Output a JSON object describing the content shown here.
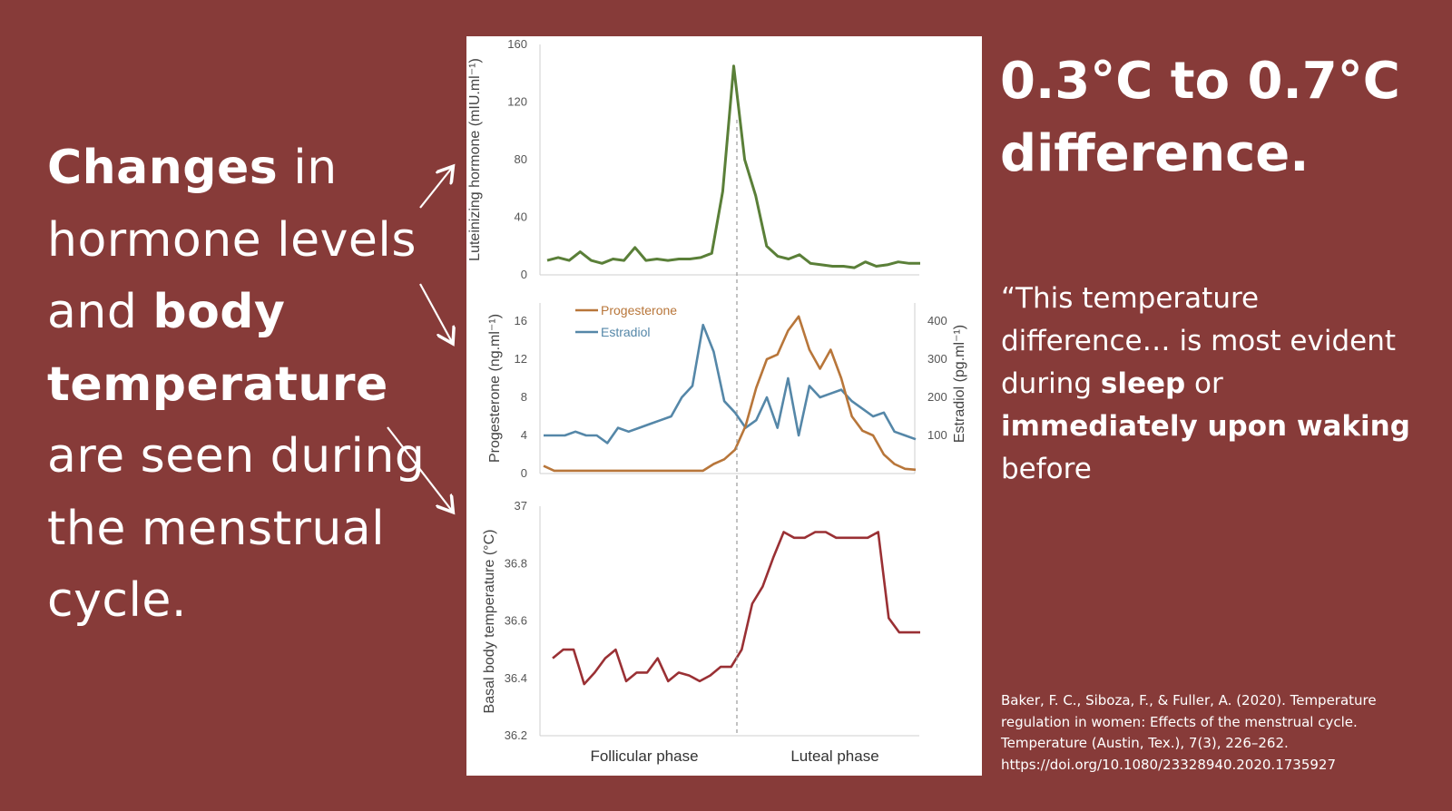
{
  "left": {
    "parts": [
      {
        "text": "Changes",
        "bold": true
      },
      {
        "text": " in hormone levels and ",
        "bold": false
      },
      {
        "text": "body temperature",
        "bold": true
      },
      {
        "text": " are seen during the menstrual cycle.",
        "bold": false
      }
    ]
  },
  "headline": "0.3°C to 0.7°C difference.",
  "quote": {
    "parts": [
      {
        "text": "“This temperature difference… is most evident during ",
        "bold": false
      },
      {
        "text": "sleep",
        "bold": true
      },
      {
        "text": " or ",
        "bold": false
      },
      {
        "text": "immediately upon waking",
        "bold": true
      },
      {
        "text": " before",
        "bold": false
      }
    ]
  },
  "citation": {
    "lines": [
      "Baker, F. C., Siboza, F., & Fuller, A. (2020). Temperature",
      "regulation in women: Effects of the menstrual cycle.",
      "Temperature (Austin, Tex.), 7(3), 226–262.",
      "https://doi.org/10.1080/23328940.2020.1735927"
    ]
  },
  "colors": {
    "background": "#873b39",
    "lh": "#5a7f38",
    "progesterone": "#b8763a",
    "estradiol": "#5587a8",
    "bbt": "#9a3034"
  },
  "chart_data": [
    {
      "type": "line",
      "x": [
        1,
        2,
        3,
        4,
        5,
        6,
        7,
        8,
        9,
        10,
        11,
        12,
        13,
        14,
        15,
        16,
        17,
        18,
        19,
        20,
        21,
        22,
        23,
        24,
        25,
        26,
        27,
        28,
        29,
        30,
        31,
        32,
        33,
        34,
        35
      ],
      "series": [
        {
          "values": [
            10,
            12,
            10,
            16,
            10,
            8,
            11,
            10,
            19,
            10,
            11,
            10,
            11,
            11,
            12,
            15,
            58,
            145,
            80,
            55,
            20,
            13,
            11,
            14,
            8,
            7,
            6,
            6,
            5,
            9,
            6,
            7,
            9,
            8,
            8
          ]
        }
      ],
      "ylabel": "Luteinizing hormone (mIU.ml⁻¹)",
      "ylim": [
        0,
        160
      ],
      "yticks": [
        "0",
        "40",
        "80",
        "120",
        "160"
      ],
      "grid": false
    },
    {
      "type": "line",
      "x": [
        1,
        2,
        3,
        4,
        5,
        6,
        7,
        8,
        9,
        10,
        11,
        12,
        13,
        14,
        15,
        16,
        17,
        18,
        19,
        20,
        21,
        22,
        23,
        24,
        25,
        26,
        27,
        28,
        29,
        30,
        31,
        32,
        33,
        34,
        35,
        36
      ],
      "series": [
        {
          "name": "Progesterone",
          "axis": "left",
          "values": [
            0.8,
            0.3,
            0.3,
            0.3,
            0.3,
            0.3,
            0.3,
            0.3,
            0.3,
            0.3,
            0.3,
            0.3,
            0.3,
            0.3,
            0.3,
            0.3,
            1.0,
            1.5,
            2.5,
            5.0,
            9.0,
            12.0,
            12.5,
            15.0,
            16.5,
            13.0,
            11.0,
            13.0,
            10.0,
            6.0,
            4.5,
            4.0,
            2.0,
            1.0,
            0.5,
            0.4
          ]
        },
        {
          "name": "Estradiol",
          "axis": "right",
          "values": [
            100,
            100,
            100,
            110,
            100,
            100,
            80,
            120,
            110,
            120,
            130,
            140,
            150,
            200,
            230,
            390,
            320,
            190,
            160,
            120,
            140,
            200,
            120,
            250,
            100,
            230,
            200,
            210,
            220,
            190,
            170,
            150,
            160,
            110,
            100,
            90
          ]
        }
      ],
      "ylabel": "Progesterone (ng.ml⁻¹)",
      "ylim": [
        0,
        16
      ],
      "yticks": [
        "0",
        "4",
        "8",
        "12",
        "16"
      ],
      "y2label": "Estradiol (pg.ml⁻¹)",
      "y2lim": [
        0,
        400
      ],
      "y2ticks": [
        "100",
        "200",
        "300",
        "400"
      ],
      "legend": "top-left",
      "grid": false
    },
    {
      "type": "line",
      "x": [
        1,
        2,
        3,
        4,
        5,
        6,
        7,
        8,
        9,
        10,
        11,
        12,
        13,
        14,
        15,
        16,
        17,
        18,
        19,
        20,
        21,
        22,
        23,
        24,
        25,
        26,
        27,
        28,
        29,
        30,
        31,
        32,
        33,
        34,
        35,
        36
      ],
      "series": [
        {
          "values": [
            36.47,
            36.5,
            36.5,
            36.38,
            36.42,
            36.47,
            36.5,
            36.39,
            36.42,
            36.42,
            36.47,
            36.39,
            36.42,
            36.41,
            36.39,
            36.41,
            36.44,
            36.44,
            36.5,
            36.66,
            36.72,
            36.82,
            36.91,
            36.89,
            36.89,
            36.91,
            36.91,
            36.89,
            36.89,
            36.89,
            36.89,
            36.91,
            36.61,
            36.56,
            36.56,
            36.56
          ]
        }
      ],
      "ylabel": "Basal body temperature (°C)",
      "ylim": [
        36.2,
        37
      ],
      "yticks": [
        "36.2",
        "36.4",
        "36.6",
        "36.8",
        "37"
      ],
      "xlabels": [
        "Follicular phase",
        "Luteal phase"
      ],
      "grid": false
    }
  ]
}
